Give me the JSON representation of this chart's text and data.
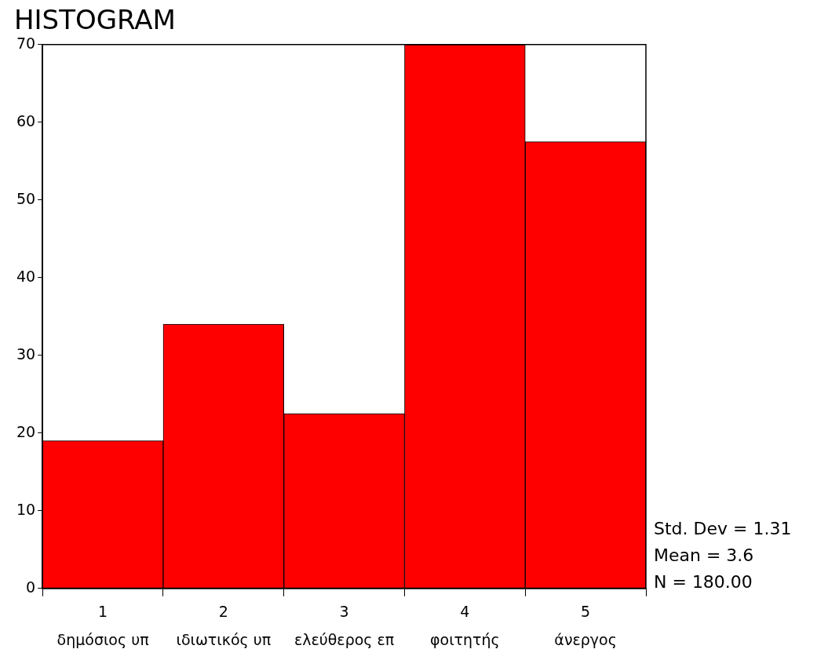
{
  "chart_data": {
    "type": "histogram",
    "title": "HISTOGRAM",
    "bins": [
      0.5,
      1.5,
      2.5,
      3.5,
      4.5,
      5.5
    ],
    "values": [
      19,
      34,
      22.5,
      70,
      57.5
    ],
    "color": "#ff0000",
    "xlim": [
      0.5,
      5.5
    ],
    "xticks": [
      {
        "value": 1,
        "label": "1\nδημόσιος υπ"
      },
      {
        "value": 2,
        "label": "2\nιδιωτικός υπ"
      },
      {
        "value": 3,
        "label": "3\nελεύθερος επ"
      },
      {
        "value": 4,
        "label": "4\nφοιτητής"
      },
      {
        "value": 5,
        "label": "5\nάνεργος"
      }
    ],
    "ylim": [
      0,
      70
    ],
    "yticks": [
      0,
      10,
      20,
      30,
      40,
      50,
      60,
      70
    ],
    "annotations": [
      "Std. Dev = 1.31",
      "Mean = 3.6",
      "N = 180.00"
    ]
  }
}
